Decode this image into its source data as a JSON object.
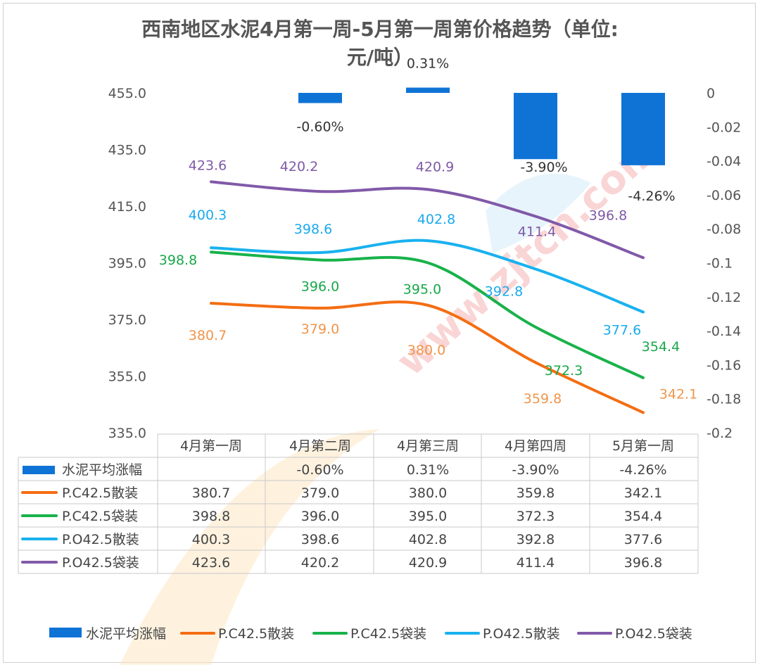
{
  "title_line1": "西南地区水泥4月第一周-5月第一周第价格趋势（单位:",
  "title_line2": "元/吨）",
  "chart_data": {
    "type": "line+bar",
    "categories": [
      "4月第一周",
      "4月第二周",
      "4月第三周",
      "4月第四周",
      "5月第一周"
    ],
    "y_left": {
      "ticks": [
        "455.0",
        "435.0",
        "415.0",
        "395.0",
        "375.0",
        "355.0",
        "335.0"
      ],
      "min": 335,
      "max": 455
    },
    "y_right": {
      "ticks": [
        "0",
        "-0.02",
        "-0.04",
        "-0.06",
        "-0.08",
        "-0.1",
        "-0.12",
        "-0.14",
        "-0.16",
        "-0.18",
        "-0.2"
      ],
      "min": -0.2,
      "max": 0
    },
    "bar_series": {
      "name": "水泥平均涨幅",
      "color": "#0f73d6",
      "values": [
        null,
        -0.006,
        0.0031,
        -0.039,
        -0.0426
      ],
      "labels": [
        "",
        "-0.60%",
        "0.31%",
        "-3.90%",
        "-4.26%"
      ]
    },
    "series": [
      {
        "name": "P.C42.5散装",
        "color": "#f46d12",
        "label_color": "#f0954a",
        "values": [
          380.7,
          379.0,
          380.0,
          359.8,
          342.1
        ],
        "labels": [
          "380.7",
          "379.0",
          "380.0",
          "359.8",
          "342.1"
        ]
      },
      {
        "name": "P.C42.5袋装",
        "color": "#18b24a",
        "label_color": "#18a84a",
        "values": [
          398.8,
          396.0,
          395.0,
          372.3,
          354.4
        ],
        "labels": [
          "398.8",
          "396.0",
          "395.0",
          "372.3",
          "354.4"
        ]
      },
      {
        "name": "P.O42.5散装",
        "color": "#19b1ef",
        "label_color": "#19aaee",
        "values": [
          400.3,
          398.6,
          402.8,
          392.8,
          377.6
        ],
        "labels": [
          "400.3",
          "398.6",
          "402.8",
          "392.8",
          "377.6"
        ]
      },
      {
        "name": "P.O42.5袋装",
        "color": "#8159a8",
        "label_color": "#7e5aa6",
        "values": [
          423.6,
          420.2,
          420.9,
          411.4,
          396.8
        ],
        "labels": [
          "423.6",
          "420.2",
          "420.9",
          "411.4",
          "396.8"
        ]
      }
    ],
    "data_table": {
      "rows": [
        {
          "name": "水泥平均涨幅",
          "cells": [
            "",
            "-0.60%",
            "0.31%",
            "-3.90%",
            "-4.26%"
          ]
        },
        {
          "name": "P.C42.5散装",
          "cells": [
            "380.7",
            "379.0",
            "380.0",
            "359.8",
            "342.1"
          ]
        },
        {
          "name": "P.C42.5袋装",
          "cells": [
            "398.8",
            "396.0",
            "395.0",
            "372.3",
            "354.4"
          ]
        },
        {
          "name": "P.O42.5散装",
          "cells": [
            "400.3",
            "398.6",
            "402.8",
            "392.8",
            "377.6"
          ]
        },
        {
          "name": "P.O42.5袋装",
          "cells": [
            "423.6",
            "420.2",
            "420.9",
            "411.4",
            "396.8"
          ]
        }
      ]
    },
    "legend": [
      "水泥平均涨幅",
      "P.C42.5散装",
      "P.C42.5袋装",
      "P.O42.5散装",
      "P.O42.5袋装"
    ],
    "legend_position": "bottom",
    "watermark": "www.zjtcn.com"
  }
}
